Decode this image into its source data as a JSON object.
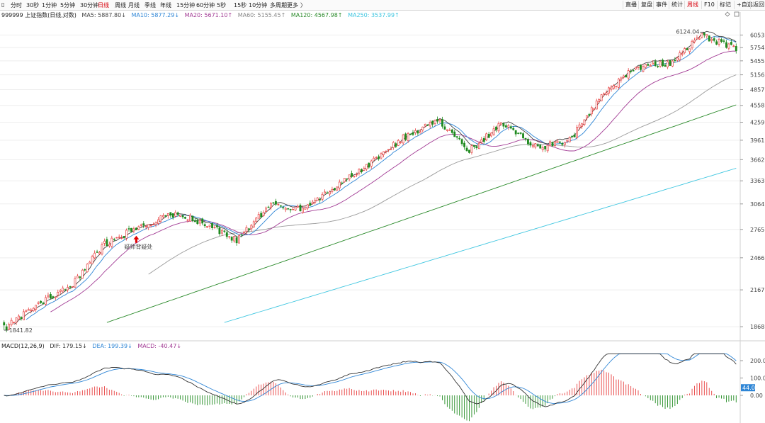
{
  "toolbar": {
    "left_items": [
      "分时",
      "30秒",
      "1分钟",
      "5分钟",
      "30分钟",
      "日线",
      "周线",
      "月线",
      "季线",
      "年线",
      "15分钟",
      "60分钟",
      "5秒",
      "15秒",
      "10分钟",
      "多周期",
      "更多"
    ],
    "active_left": "日线",
    "right_items": [
      "直播",
      "复盘",
      "事件",
      "统计",
      "周线",
      "F10",
      "标记",
      "+自选",
      "返回"
    ],
    "active_right": "周线",
    "top_right_icons": [
      "diamond-icon",
      "grid-icon"
    ]
  },
  "legend": {
    "title": "999999 上证指数(日线,对数)",
    "ma5": "MA5: 5887.80↓",
    "ma10": "MA10: 5877.29↓",
    "ma20": "MA20: 5671.10↑",
    "ma60": "MA60: 5155.45↑",
    "ma120": "MA120: 4567.98↑",
    "ma250": "MA250: 3537.99↑"
  },
  "macd_legend": {
    "title": "MACD(12,26,9)",
    "dif": "DIF: 179.15↓",
    "dea": "DEA: 199.39↓",
    "macd": "MACD: -40.47↓"
  },
  "annotations": {
    "high_label": "6124.04",
    "low_label": "1841.82",
    "marker_label": "疑师背疑处"
  },
  "colors": {
    "up": "#e84040",
    "down": "#1f8a1f",
    "ma5": "#444444",
    "ma10": "#2f86d6",
    "ma20": "#a23b94",
    "ma60": "#9a9a9a",
    "ma120": "#2a8a2a",
    "ma250": "#3ec6e0",
    "dif": "#333333",
    "dea": "#2f86d6"
  },
  "chart_data": [
    {
      "type": "candlestick",
      "title": "999999 上证指数(日线,对数)",
      "y_scale": "log",
      "ylim": [
        1841.82,
        6124.04
      ],
      "y_ticks": [
        6053,
        5754,
        5455,
        5156,
        4857,
        4558,
        4259,
        3961,
        3662,
        3363,
        3064,
        2765,
        2466,
        2167,
        1868
      ],
      "high_value": 6124.04,
      "low_value": 1841.82,
      "ohlc_path_close": [
        1850,
        2050,
        2200,
        2600,
        2780,
        2950,
        2850,
        2650,
        3050,
        3000,
        3300,
        3600,
        4000,
        4300,
        3800,
        4250,
        3850,
        3950,
        4800,
        5300,
        5400,
        6050,
        5700
      ],
      "moving_averages": {
        "MA5": 5887.8,
        "MA10": 5877.29,
        "MA20": 5671.1,
        "MA60": 5155.45,
        "MA120": 4567.98,
        "MA250": 3537.99
      }
    },
    {
      "type": "line",
      "title": "MACD(12,26,9)",
      "y_ticks": [
        200.0,
        100.0,
        0.0
      ],
      "current_tag": "44.0",
      "series": [
        {
          "name": "DIF",
          "last": 179.15
        },
        {
          "name": "DEA",
          "last": 199.39
        },
        {
          "name": "MACD",
          "last": -40.47
        }
      ]
    }
  ]
}
